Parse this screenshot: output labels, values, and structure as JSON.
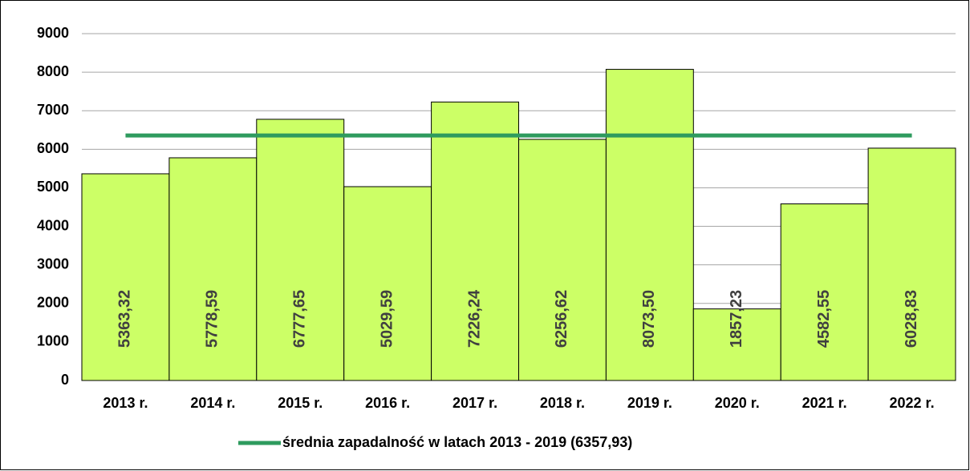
{
  "chart_data": {
    "type": "bar",
    "categories": [
      "2013 r.",
      "2014 r.",
      "2015 r.",
      "2016 r.",
      "2017 r.",
      "2018 r.",
      "2019 r.",
      "2020 r.",
      "2021 r.",
      "2022 r."
    ],
    "values": [
      5363.32,
      5778.59,
      6777.65,
      5029.59,
      7226.24,
      6256.62,
      8073.5,
      1857.23,
      4582.55,
      6028.83
    ],
    "value_labels": [
      "5363,32",
      "5778,59",
      "6777,65",
      "5029,59",
      "7226,24",
      "6256,62",
      "8073,50",
      "1857,23",
      "4582,55",
      "6028,83"
    ],
    "color": "#ccff66",
    "reference_line": {
      "name": "średnia zapadalność w latach 2013 - 2019 (6357,93)",
      "value": 6357.93,
      "color": "#2e9b5e"
    },
    "ylim": [
      0,
      9000
    ],
    "yticks": [
      0,
      1000,
      2000,
      3000,
      4000,
      5000,
      6000,
      7000,
      8000,
      9000
    ],
    "grid": true,
    "legend": "bottom"
  }
}
